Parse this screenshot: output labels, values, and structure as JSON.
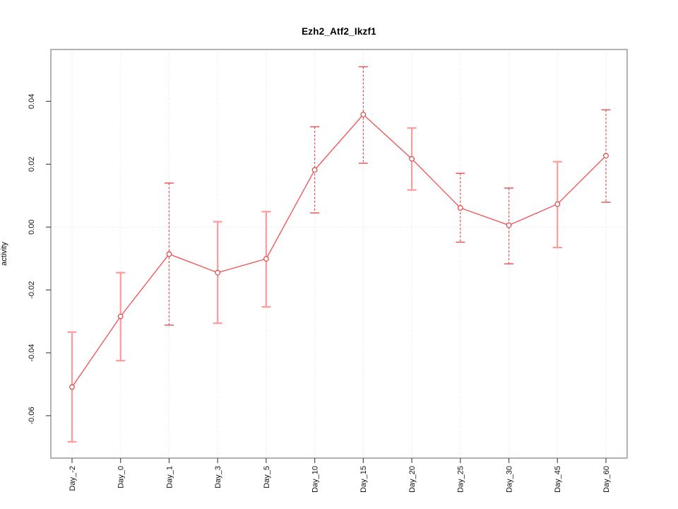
{
  "chart_data": {
    "type": "line",
    "title": "Ezh2_Atf2_Ikzf1",
    "ylabel": "activity",
    "xlabel": "",
    "legend": null,
    "categories": [
      "Day_-2",
      "Day_0",
      "Day_1",
      "Day_3",
      "Day_5",
      "Day_10",
      "Day_15",
      "Day_20",
      "Day_25",
      "Day_30",
      "Day_45",
      "Day_60"
    ],
    "series": [
      {
        "name": "activity",
        "values": [
          -0.0509,
          -0.0284,
          -0.0086,
          -0.0145,
          -0.0101,
          0.0182,
          0.0358,
          0.0217,
          0.0061,
          0.0006,
          0.0073,
          0.0227
        ],
        "upper": [
          -0.0334,
          -0.0145,
          0.014,
          0.0017,
          0.0049,
          0.0319,
          0.051,
          0.0315,
          0.0171,
          0.0124,
          0.0208,
          0.0373
        ],
        "lower": [
          -0.0683,
          -0.0425,
          -0.0312,
          -0.0306,
          -0.0254,
          0.0045,
          0.0203,
          0.0118,
          -0.0048,
          -0.0117,
          -0.0065,
          0.0079
        ],
        "errorbar_styles": [
          "solid",
          "solid",
          "dashed",
          "solid",
          "solid",
          "dashed",
          "dashed",
          "solid",
          "dashed",
          "dashed",
          "solid",
          "dashed"
        ]
      }
    ],
    "ylim": [
      -0.0735,
      0.0565
    ],
    "yticks": [
      -0.06,
      -0.04,
      -0.02,
      0.0,
      0.02,
      0.04
    ],
    "ytick_labels": [
      "-0.06",
      "-0.04",
      "-0.02",
      "0.00",
      "0.02",
      "0.04"
    ],
    "grid": {
      "vertical_dotted_at_each_category": true,
      "horizontal_dotted_at_zero": true
    },
    "legend_position": "none",
    "colors": {
      "line": "#f25050",
      "marker_stroke": "#e04545",
      "marker_fill": "#ffffff",
      "errorbar_solid": "#ff9a9a",
      "errorbar_dashed": "#ea4d4d",
      "grid": "#dcdcdc",
      "box": "#8a8a8a",
      "tick": "#4d4d4d",
      "text": "#111111"
    }
  }
}
